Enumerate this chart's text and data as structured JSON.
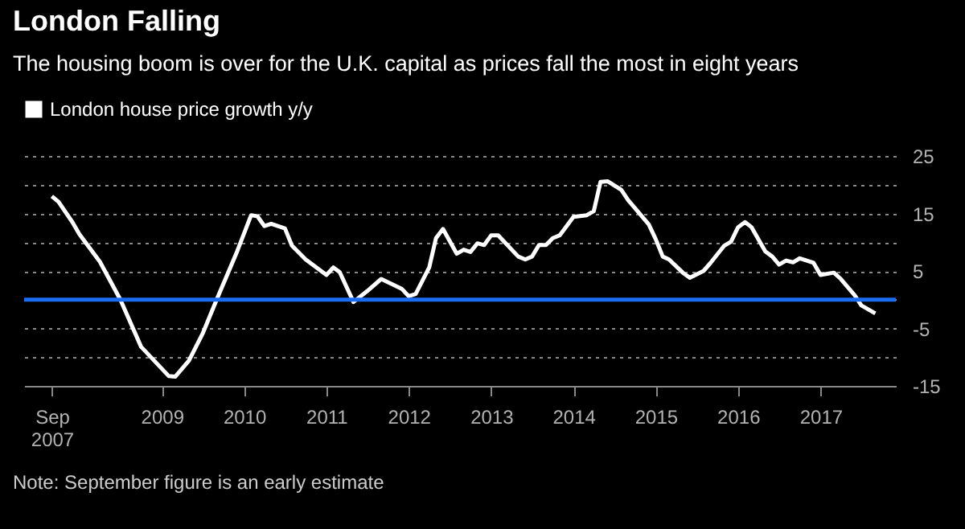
{
  "chart_data": {
    "type": "line",
    "title": "London Falling",
    "subtitle": "The housing boom is over for the U.K. capital as prices fall the most in eight years",
    "legend": "top left",
    "grid": true,
    "marker": "none",
    "line_style": "solid",
    "xlim": [
      "2007-05",
      "2017-12"
    ],
    "xticks": [
      {
        "value": "2007-09",
        "label": "Sep\n2007"
      },
      {
        "value": "2009",
        "label": "2009"
      },
      {
        "value": "2010",
        "label": "2010"
      },
      {
        "value": "2011",
        "label": "2011"
      },
      {
        "value": "2012",
        "label": "2012"
      },
      {
        "value": "2013",
        "label": "2013"
      },
      {
        "value": "2014",
        "label": "2014"
      },
      {
        "value": "2015",
        "label": "2015"
      },
      {
        "value": "2016",
        "label": "2016"
      },
      {
        "value": "2017",
        "label": "2017"
      }
    ],
    "ylim": [
      -15,
      25
    ],
    "yticks": [
      -15,
      {
        "value": -10,
        "label": null
      },
      -5,
      {
        "value": 0,
        "label": null
      },
      5,
      {
        "value": 10,
        "label": null
      },
      15,
      {
        "value": 20,
        "label": null
      },
      25
    ],
    "ref_lines": [
      {
        "axis": "y",
        "value": 0,
        "color": "#1a6cf0"
      }
    ],
    "annotations": [
      "Note: September figure is an early estimate"
    ],
    "series": [
      {
        "name": "London house price growth y/y",
        "color": "#ffffff",
        "x": [
          "2007-09",
          "2007-10",
          "2007-12",
          "2008-01",
          "2008-04",
          "2008-07",
          "2008-10",
          "2009-02",
          "2009-03",
          "2009-05",
          "2009-07",
          "2009-09",
          "2009-12",
          "2010-02",
          "2010-03",
          "2010-04",
          "2010-05",
          "2010-07",
          "2010-08",
          "2010-10",
          "2011-01",
          "2011-02",
          "2011-03",
          "2011-05",
          "2011-07",
          "2011-09",
          "2011-12",
          "2012-01",
          "2012-02",
          "2012-04",
          "2012-05",
          "2012-06",
          "2012-08",
          "2012-09",
          "2012-10",
          "2012-11",
          "2012-12",
          "2013-01",
          "2013-02",
          "2013-05",
          "2013-06",
          "2013-07",
          "2013-08",
          "2013-09",
          "2013-10",
          "2013-11",
          "2014-01",
          "2014-03",
          "2014-04",
          "2014-05",
          "2014-06",
          "2014-08",
          "2014-09",
          "2014-12",
          "2015-01",
          "2015-02",
          "2015-03",
          "2015-05",
          "2015-06",
          "2015-08",
          "2015-09",
          "2015-11",
          "2015-12",
          "2016-01",
          "2016-02",
          "2016-03",
          "2016-05",
          "2016-06",
          "2016-07",
          "2016-08",
          "2016-09",
          "2016-10",
          "2016-12",
          "2017-01",
          "2017-03",
          "2017-04",
          "2017-06",
          "2017-07",
          "2017-09"
        ],
        "values": [
          18,
          17,
          13.5,
          11.4,
          6.6,
          0,
          -8.2,
          -13.3,
          -13.4,
          -10.6,
          -5.9,
          0,
          8.4,
          14.7,
          14.5,
          12.8,
          13.2,
          12.4,
          9.4,
          7.0,
          4.3,
          5.6,
          4.8,
          -0.4,
          1.5,
          3.6,
          1.9,
          0.6,
          1.0,
          5.6,
          10.7,
          12.3,
          8.0,
          8.7,
          8.3,
          9.8,
          9.5,
          11.2,
          11.2,
          7.5,
          7.0,
          7.5,
          9.5,
          9.5,
          10.7,
          11.2,
          14.4,
          14.7,
          15.4,
          20.5,
          20.6,
          19.1,
          17.3,
          13.1,
          10.5,
          7.5,
          7.0,
          4.7,
          3.8,
          5.0,
          6.4,
          9.4,
          10.1,
          12.6,
          13.5,
          12.6,
          8.4,
          7.5,
          6.1,
          6.8,
          6.5,
          7.2,
          6.4,
          4.3,
          4.7,
          3.6,
          0.8,
          -1.0,
          -2.4
        ]
      }
    ]
  }
}
